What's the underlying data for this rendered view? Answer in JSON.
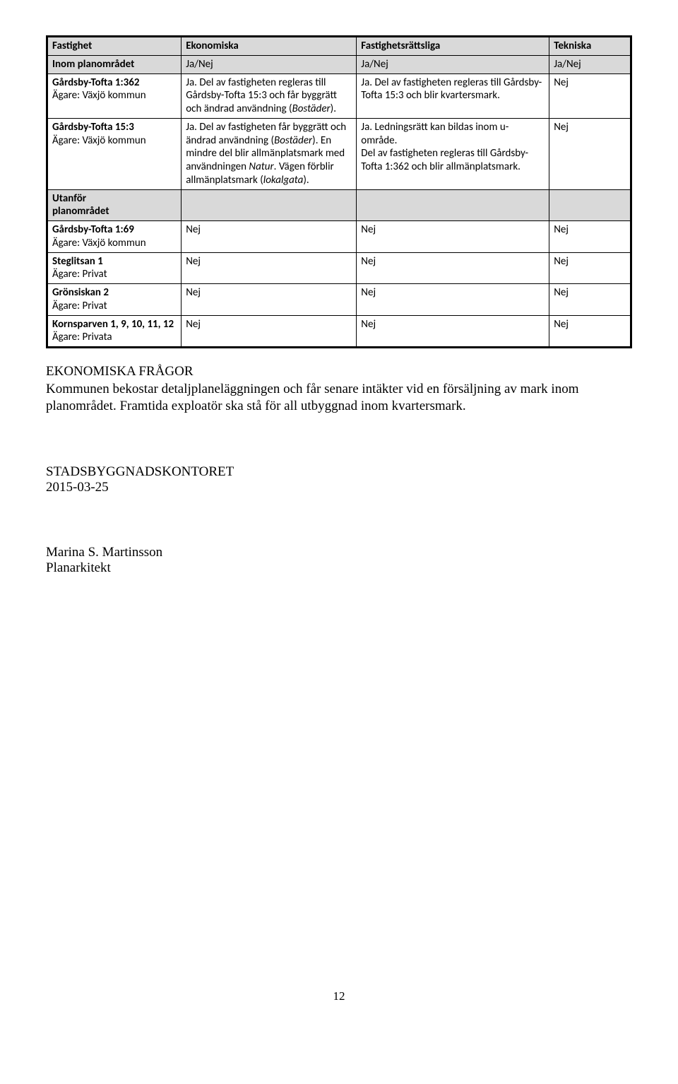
{
  "table": {
    "head": {
      "c0": "Fastighet",
      "c1": "Ekonomiska",
      "c2": "Fastighetsrättsliga",
      "c3": "Tekniska"
    },
    "r2": {
      "c0": "Inom planområdet",
      "c1": "Ja/Nej",
      "c2": "Ja/Nej",
      "c3": "Ja/Nej"
    },
    "r3": {
      "c0a": "Gårdsby-Tofta 1:362",
      "c0b": "Ägare: Växjö kommun",
      "c1_pre": "Ja. Del av fastigheten regleras till Gårdsby-Tofta 15:3 och får byggrätt och ändrad användning (",
      "c1_it": "Bostäder",
      "c1_post": ").",
      "c2": "Ja. Del av fastigheten regleras till Gårdsby-Tofta 15:3 och blir kvartersmark.",
      "c3": "Nej"
    },
    "r4": {
      "c0a": "Gårdsby-Tofta 15:3",
      "c0b": "Ägare: Växjö kommun",
      "c1_a": "Ja. Del av fastigheten får byggrätt och ändrad användning (",
      "c1_it1": "Bostäder",
      "c1_b": "). En mindre del blir allmänplatsmark med användningen ",
      "c1_it2": "Natur",
      "c1_c": ". Vägen förblir allmänplatsmark (",
      "c1_it3": "lokalgata",
      "c1_d": ").",
      "c2": "Ja. Ledningsrätt kan bildas inom u-område.\nDel av fastigheten regleras till Gårdsby-Tofta 1:362 och blir allmänplatsmark.",
      "c3": "Nej"
    },
    "r5": {
      "c0a": "Utanför",
      "c0b": "planområdet"
    },
    "r6": {
      "c0a": "Gårdsby-Tofta 1:69",
      "c0b": "Ägare: Växjö kommun",
      "c1": "Nej",
      "c2": "Nej",
      "c3": "Nej"
    },
    "r7": {
      "c0a": "Steglitsan 1",
      "c0b": "Ägare: Privat",
      "c1": "Nej",
      "c2": "Nej",
      "c3": "Nej"
    },
    "r8": {
      "c0a": "Grönsiskan 2",
      "c0b": "Ägare: Privat",
      "c1": "Nej",
      "c2": "Nej",
      "c3": "Nej"
    },
    "r9": {
      "c0a": "Kornsparven 1, 9, 10, 11, 12",
      "c0b": "Ägare: Privata",
      "c1": "Nej",
      "c2": "Nej",
      "c3": "Nej"
    }
  },
  "section_heading": "EKONOMISKA FRÅGOR",
  "section_body": "Kommunen bekostar detaljplaneläggningen och får senare intäkter vid en försäljning av mark inom planområdet. Framtida exploatör ska stå för all utbyggnad inom kvartersmark.",
  "org": "STADSBYGGNADSKONTORET",
  "date": "2015-03-25",
  "signer_name": "Marina S. Martinsson",
  "signer_title": "Planarkitekt",
  "page_number": "12"
}
